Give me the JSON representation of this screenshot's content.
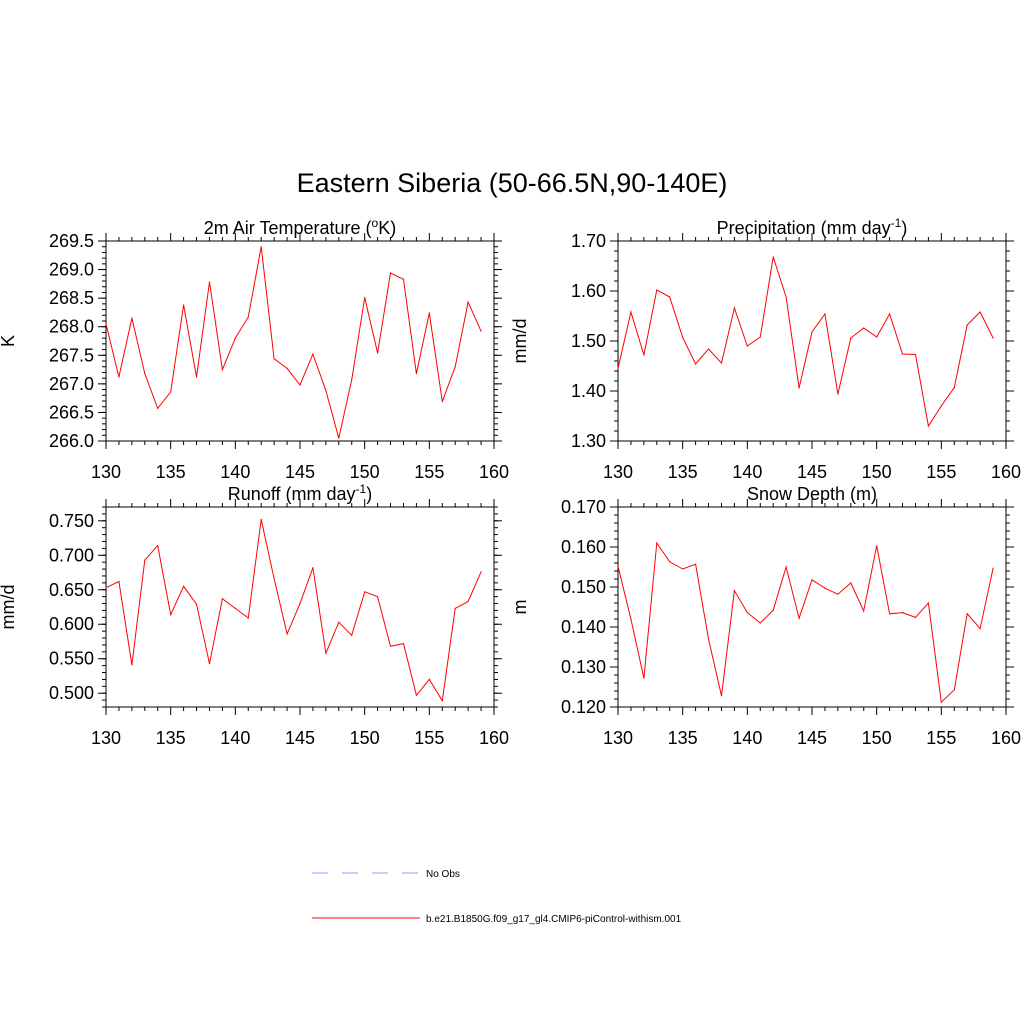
{
  "title": "Eastern Siberia (50-66.5N,90-140E)",
  "colors": {
    "model": "#ff0000",
    "obs": "#9999ff",
    "axis": "#000000"
  },
  "legend": {
    "obs_label": "No Obs",
    "model_label": "b.e21.B1850G.f09_g17_gl4.CMIP6-piControl-withism.001"
  },
  "chart_data": [
    {
      "type": "line",
      "title": "2m Air Temperature (oK)",
      "title_parts": {
        "pre": "2m Air Temperature (",
        "sup": "o",
        "post": "K)"
      },
      "ylabel": "K",
      "xlim": [
        130,
        160
      ],
      "ylim": [
        266.0,
        269.5
      ],
      "yticks": [
        "266.0",
        "266.5",
        "267.0",
        "267.5",
        "268.0",
        "268.5",
        "269.0",
        "269.5"
      ],
      "xticks": [
        "130",
        "135",
        "140",
        "145",
        "150",
        "155",
        "160"
      ],
      "series": [
        {
          "name": "b.e21.B1850G.f09_g17_gl4.CMIP6-piControl-withism.001",
          "x": [
            130,
            131,
            132,
            133,
            134,
            135,
            136,
            137,
            138,
            139,
            140,
            141,
            142,
            143,
            144,
            145,
            146,
            147,
            148,
            149,
            150,
            151,
            152,
            153,
            154,
            155,
            156,
            157,
            158,
            159
          ],
          "values": [
            268.05,
            267.12,
            268.15,
            267.18,
            266.57,
            266.86,
            268.38,
            267.12,
            268.78,
            267.25,
            267.8,
            268.17,
            269.4,
            267.44,
            267.27,
            266.98,
            267.52,
            266.88,
            266.05,
            267.07,
            268.51,
            267.54,
            268.94,
            268.83,
            267.18,
            268.24,
            266.69,
            267.3,
            268.43,
            267.92
          ]
        }
      ]
    },
    {
      "type": "line",
      "title": "Precipitation (mm day-1)",
      "title_parts": {
        "pre": "Precipitation (mm day",
        "sup": "-1",
        "post": ")"
      },
      "ylabel": "mm/d",
      "xlim": [
        130,
        160
      ],
      "ylim": [
        1.3,
        1.7
      ],
      "yticks": [
        "1.30",
        "1.40",
        "1.50",
        "1.60",
        "1.70"
      ],
      "xticks": [
        "130",
        "135",
        "140",
        "145",
        "150",
        "155",
        "160"
      ],
      "series": [
        {
          "name": "b.e21.B1850G.f09_g17_gl4.CMIP6-piControl-withism.001",
          "x": [
            130,
            131,
            132,
            133,
            134,
            135,
            136,
            137,
            138,
            139,
            140,
            141,
            142,
            143,
            144,
            145,
            146,
            147,
            148,
            149,
            150,
            151,
            152,
            153,
            154,
            155,
            156,
            157,
            158,
            159
          ],
          "values": [
            1.445,
            1.558,
            1.472,
            1.602,
            1.588,
            1.507,
            1.454,
            1.484,
            1.456,
            1.566,
            1.49,
            1.508,
            1.668,
            1.588,
            1.406,
            1.518,
            1.554,
            1.394,
            1.506,
            1.526,
            1.508,
            1.554,
            1.474,
            1.473,
            1.33,
            1.37,
            1.407,
            1.532,
            1.558,
            1.506
          ]
        }
      ]
    },
    {
      "type": "line",
      "title": "Runoff (mm day-1)",
      "title_parts": {
        "pre": "Runoff (mm day",
        "sup": "-1",
        "post": ")"
      },
      "ylabel": "mm/d",
      "xlim": [
        130,
        160
      ],
      "ylim": [
        0.48,
        0.77
      ],
      "yticks": [
        "0.500",
        "0.550",
        "0.600",
        "0.650",
        "0.700",
        "0.750"
      ],
      "ytick_values": [
        0.5,
        0.55,
        0.6,
        0.65,
        0.7,
        0.75
      ],
      "xticks": [
        "130",
        "135",
        "140",
        "145",
        "150",
        "155",
        "160"
      ],
      "series": [
        {
          "name": "b.e21.B1850G.f09_g17_gl4.CMIP6-piControl-withism.001",
          "x": [
            130,
            131,
            132,
            133,
            134,
            135,
            136,
            137,
            138,
            139,
            140,
            141,
            142,
            143,
            144,
            145,
            146,
            147,
            148,
            149,
            150,
            151,
            152,
            153,
            154,
            155,
            156,
            157,
            158,
            159
          ],
          "values": [
            0.653,
            0.662,
            0.541,
            0.693,
            0.714,
            0.614,
            0.655,
            0.629,
            0.543,
            0.637,
            0.623,
            0.609,
            0.752,
            0.666,
            0.586,
            0.63,
            0.682,
            0.558,
            0.603,
            0.584,
            0.647,
            0.64,
            0.568,
            0.572,
            0.497,
            0.52,
            0.489,
            0.623,
            0.633,
            0.676
          ]
        }
      ]
    },
    {
      "type": "line",
      "title": "Snow Depth (m)",
      "title_parts": {
        "pre": "Snow Depth (m)",
        "sup": "",
        "post": ""
      },
      "ylabel": "m",
      "xlim": [
        130,
        160
      ],
      "ylim": [
        0.12,
        0.17
      ],
      "yticks": [
        "0.120",
        "0.130",
        "0.140",
        "0.150",
        "0.160",
        "0.170"
      ],
      "xticks": [
        "130",
        "135",
        "140",
        "145",
        "150",
        "155",
        "160"
      ],
      "series": [
        {
          "name": "b.e21.B1850G.f09_g17_gl4.CMIP6-piControl-withism.001",
          "x": [
            130,
            131,
            132,
            133,
            134,
            135,
            136,
            137,
            138,
            139,
            140,
            141,
            142,
            143,
            144,
            145,
            146,
            147,
            148,
            149,
            150,
            151,
            152,
            153,
            154,
            155,
            156,
            157,
            158,
            159
          ],
          "values": [
            0.1552,
            0.142,
            0.1272,
            0.161,
            0.1563,
            0.1545,
            0.1557,
            0.137,
            0.1228,
            0.1491,
            0.1436,
            0.141,
            0.1442,
            0.155,
            0.1422,
            0.1518,
            0.1497,
            0.1482,
            0.151,
            0.144,
            0.1603,
            0.1433,
            0.1436,
            0.1424,
            0.146,
            0.1212,
            0.1243,
            0.1433,
            0.1396,
            0.1547
          ]
        }
      ]
    }
  ]
}
